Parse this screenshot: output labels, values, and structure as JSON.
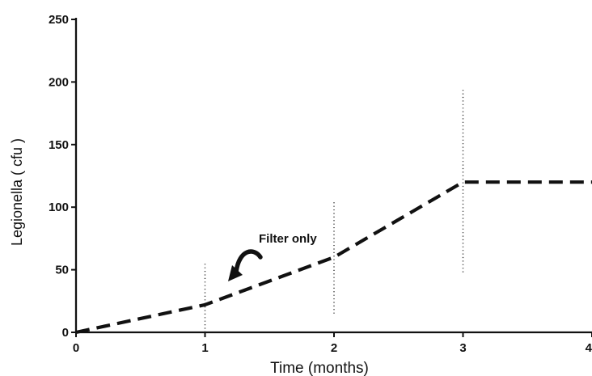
{
  "chart_data": {
    "type": "line",
    "title": "",
    "xlabel": "Time (months)",
    "ylabel": "Legionella ( cfu )",
    "xlim": [
      0,
      4
    ],
    "ylim": [
      0,
      250
    ],
    "xticks": [
      "0",
      "1",
      "2",
      "3",
      "4"
    ],
    "yticks": [
      "0",
      "50",
      "100",
      "150",
      "200",
      "250"
    ],
    "grid": false,
    "legend": "none",
    "series": [
      {
        "style": "dashed",
        "color": "#111111",
        "x": [
          0,
          1,
          2,
          3,
          4
        ],
        "y": [
          0,
          22,
          60,
          120,
          120
        ],
        "error_bars": [
          {
            "x": 1,
            "low": 0,
            "high": 55
          },
          {
            "x": 2,
            "low": 15,
            "high": 105
          },
          {
            "x": 3,
            "low": 48,
            "high": 195
          }
        ]
      }
    ],
    "annotations": [
      {
        "text": "Filter only",
        "x": 1.55,
        "y": 73,
        "arrow": "curved",
        "arrow_target_x": 1.2,
        "arrow_target_y": 40
      }
    ]
  }
}
